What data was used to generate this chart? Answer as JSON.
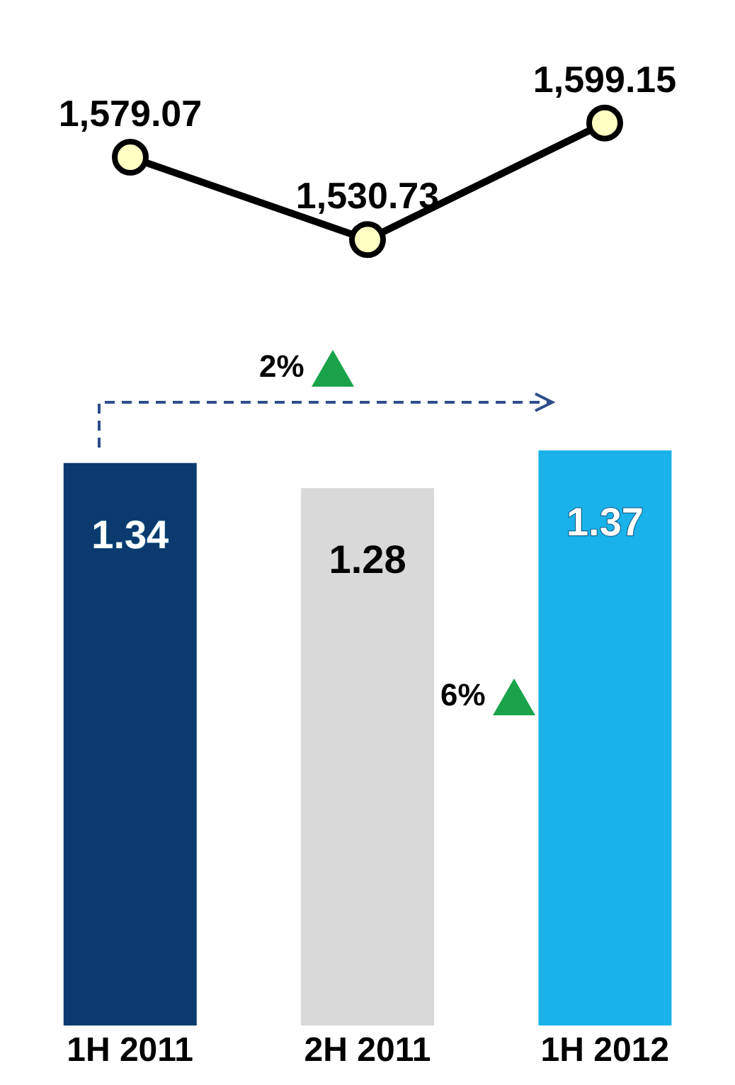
{
  "chart_data": [
    {
      "type": "line",
      "categories": [
        null,
        null,
        null
      ],
      "series": [
        {
          "color": "#000000",
          "values": [
            1579.07,
            1530.73,
            1599.15
          ],
          "value_labels": [
            "1,579.07",
            "1,530.73",
            "1,599.15"
          ]
        }
      ],
      "marker": "circle",
      "tick_labels": false
    },
    {
      "type": "bar",
      "categories": [
        "1H 2011",
        "2H 2011",
        "1H 2012"
      ],
      "values": [
        1.34,
        1.28,
        1.37
      ],
      "colors": [
        "#0b3a6e",
        "#d9d9d9",
        "#1ab2ea"
      ],
      "data_labels": true,
      "tick_labels": "x",
      "annotations": [
        "2%",
        "6%"
      ]
    }
  ]
}
